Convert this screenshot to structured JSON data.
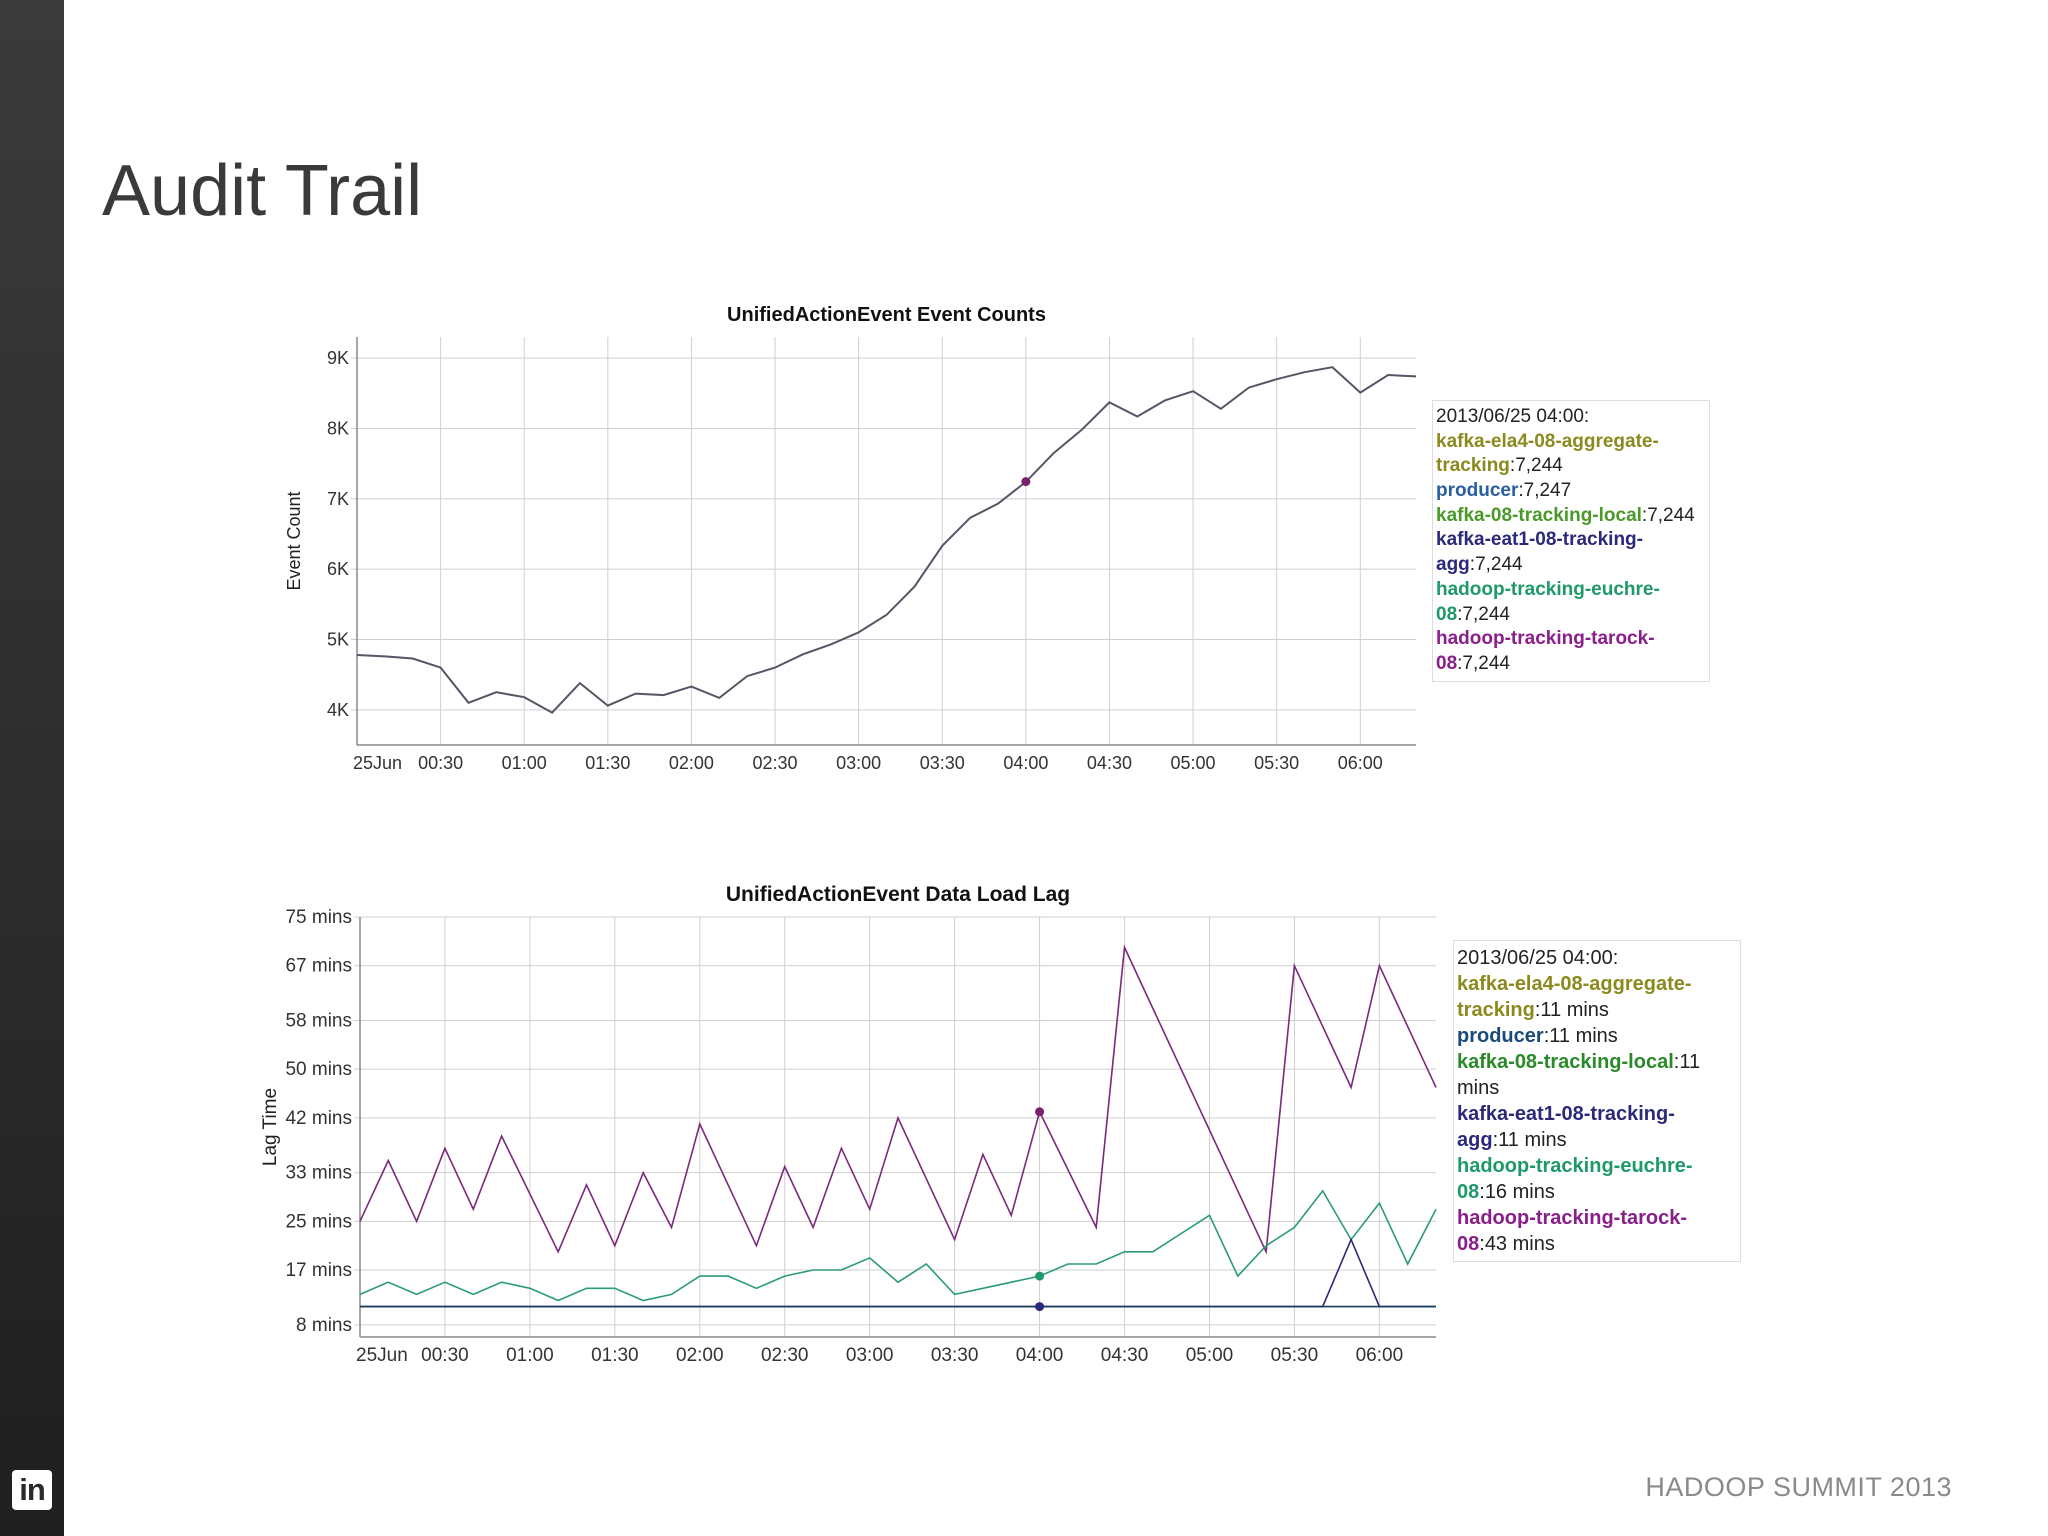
{
  "slide": {
    "title": "Audit Trail",
    "footer": "HADOOP SUMMIT 2013",
    "logo_text": "in"
  },
  "chart_data": [
    {
      "type": "line",
      "title": "UnifiedActionEvent Event Counts",
      "xlabel": "",
      "ylabel": "Event Count",
      "x_ticks": [
        "25Jun",
        "00:30",
        "01:00",
        "01:30",
        "02:00",
        "02:30",
        "03:00",
        "03:30",
        "04:00",
        "04:30",
        "05:00",
        "05:30",
        "06:00"
      ],
      "x_range_minutes": [
        0,
        380
      ],
      "y_ticks": [
        {
          "v": 4000,
          "label": "4K"
        },
        {
          "v": 5000,
          "label": "5K"
        },
        {
          "v": 6000,
          "label": "6K"
        },
        {
          "v": 7000,
          "label": "7K"
        },
        {
          "v": 8000,
          "label": "8K"
        },
        {
          "v": 9000,
          "label": "9K"
        }
      ],
      "ylim": [
        3500,
        9300
      ],
      "grid": true,
      "series": [
        {
          "name": "Event Count",
          "color": "#555566",
          "x": [
            0,
            10,
            20,
            30,
            40,
            50,
            60,
            70,
            80,
            90,
            100,
            110,
            120,
            130,
            140,
            150,
            160,
            170,
            180,
            190,
            200,
            210,
            220,
            230,
            240,
            250,
            260,
            270,
            280,
            290,
            300,
            310,
            320,
            330,
            340,
            350,
            360,
            370,
            380
          ],
          "values": [
            4780,
            4760,
            4730,
            4600,
            4100,
            4250,
            4180,
            3960,
            4380,
            4060,
            4230,
            4210,
            4330,
            4170,
            4480,
            4600,
            4790,
            4930,
            5100,
            5350,
            5750,
            6330,
            6730,
            6930,
            7240,
            7650,
            7980,
            8370,
            8170,
            8400,
            8530,
            8280,
            8580,
            8700,
            8800,
            8870,
            8510,
            8760,
            8740
          ]
        }
      ],
      "highlight": {
        "x": 240,
        "value": 7244,
        "color": "#7a1e6e"
      },
      "legend": {
        "header": "2013/06/25 04:00:",
        "entries": [
          {
            "name": "kafka-ela4-08-aggregate-tracking",
            "value": "7,244",
            "color": "#8a8a1e"
          },
          {
            "name": "producer",
            "value": "7,247",
            "color": "#2a5f9e"
          },
          {
            "name": "kafka-08-tracking-local",
            "value": "7,244",
            "color": "#4a9a2a"
          },
          {
            "name": "kafka-eat1-08-tracking-agg",
            "value": "7,244",
            "color": "#2b2a7a"
          },
          {
            "name": "hadoop-tracking-euchre-08",
            "value": "7,244",
            "color": "#1e9a6a"
          },
          {
            "name": "hadoop-tracking-tarock-08",
            "value": "7,244",
            "color": "#8a1e8a"
          }
        ]
      }
    },
    {
      "type": "line",
      "title": "UnifiedActionEvent Data Load Lag",
      "xlabel": "",
      "ylabel": "Lag Time",
      "x_ticks": [
        "25Jun",
        "00:30",
        "01:00",
        "01:30",
        "02:00",
        "02:30",
        "03:00",
        "03:30",
        "04:00",
        "04:30",
        "05:00",
        "05:30",
        "06:00"
      ],
      "x_range_minutes": [
        0,
        380
      ],
      "y_ticks": [
        {
          "v": 8,
          "label": "8 mins"
        },
        {
          "v": 17,
          "label": "17 mins"
        },
        {
          "v": 25,
          "label": "25 mins"
        },
        {
          "v": 33,
          "label": "33 mins"
        },
        {
          "v": 42,
          "label": "42 mins"
        },
        {
          "v": 50,
          "label": "50 mins"
        },
        {
          "v": 58,
          "label": "58 mins"
        },
        {
          "v": 67,
          "label": "67 mins"
        },
        {
          "v": 75,
          "label": "75 mins"
        }
      ],
      "ylim": [
        6,
        75
      ],
      "grid": true,
      "series": [
        {
          "name": "hadoop-tracking-tarock-08",
          "color": "#7a2a7a",
          "x": [
            0,
            10,
            20,
            30,
            40,
            50,
            70,
            80,
            90,
            100,
            110,
            120,
            140,
            150,
            160,
            170,
            180,
            190,
            210,
            220,
            230,
            240,
            260,
            270,
            320,
            330,
            350,
            360,
            380
          ],
          "values": [
            25,
            35,
            25,
            37,
            27,
            39,
            20,
            31,
            21,
            33,
            24,
            41,
            21,
            34,
            24,
            37,
            27,
            42,
            22,
            36,
            26,
            43,
            24,
            70,
            20,
            67,
            47,
            67,
            47
          ]
        },
        {
          "name": "hadoop-tracking-euchre-08",
          "color": "#2a9a7a",
          "x": [
            0,
            10,
            20,
            30,
            40,
            50,
            60,
            70,
            80,
            90,
            100,
            110,
            120,
            130,
            140,
            150,
            160,
            170,
            180,
            190,
            200,
            210,
            220,
            230,
            240,
            250,
            260,
            270,
            280,
            290,
            300,
            310,
            320,
            330,
            340,
            350,
            360,
            370,
            380
          ],
          "values": [
            13,
            15,
            13,
            15,
            13,
            15,
            14,
            12,
            14,
            14,
            12,
            13,
            16,
            16,
            14,
            16,
            17,
            17,
            19,
            15,
            18,
            13,
            14,
            15,
            16,
            18,
            18,
            20,
            20,
            23,
            26,
            16,
            21,
            24,
            30,
            22,
            28,
            18,
            27
          ]
        },
        {
          "name": "kafka-eat1-08-tracking-agg",
          "color": "#2a2a7a",
          "x": [
            0,
            340,
            350,
            360,
            380
          ],
          "values": [
            11,
            11,
            22,
            11,
            11
          ]
        },
        {
          "name": "producer",
          "color": "#1a3a5a",
          "x": [
            0,
            380
          ],
          "values": [
            11,
            11
          ]
        }
      ],
      "highlights": [
        {
          "x": 240,
          "value": 43,
          "color": "#7a1e6e"
        },
        {
          "x": 240,
          "value": 16,
          "color": "#1e9a6a"
        },
        {
          "x": 240,
          "value": 11,
          "color": "#2b2a7a"
        }
      ],
      "legend": {
        "header": "2013/06/25 04:00:",
        "entries": [
          {
            "name": "kafka-ela4-08-aggregate-tracking",
            "value": "11 mins",
            "color": "#8a8a1e"
          },
          {
            "name": "producer",
            "value": "11 mins",
            "color": "#1a4a7a"
          },
          {
            "name": "kafka-08-tracking-local",
            "value": "11 mins",
            "color": "#2a8a2a"
          },
          {
            "name": "kafka-eat1-08-tracking-agg",
            "value": "11 mins",
            "color": "#2b2a7a"
          },
          {
            "name": "hadoop-tracking-euchre-08",
            "value": "16 mins",
            "color": "#1e9a6a"
          },
          {
            "name": "hadoop-tracking-tarock-08",
            "value": "43 mins",
            "color": "#8a1e8a"
          }
        ]
      }
    }
  ]
}
